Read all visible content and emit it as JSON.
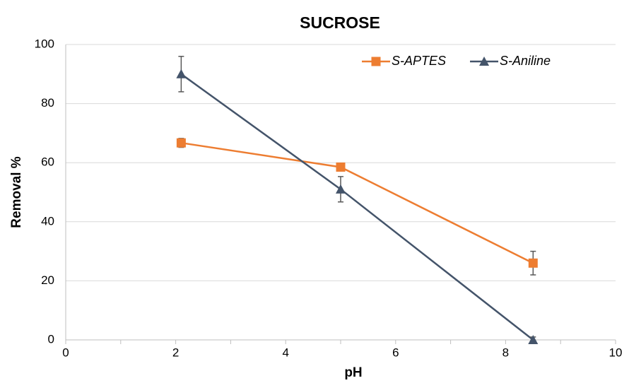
{
  "chart_data": {
    "type": "line",
    "title": "SUCROSE",
    "x_label": "pH",
    "y_label": "Removal %",
    "series": [
      {
        "name": "S-APTES",
        "color": "#ed7d31",
        "marker": "square",
        "x": [
          2.1,
          5,
          8.5
        ],
        "values": [
          66.7,
          58.5,
          26
        ],
        "errors": [
          1.5,
          1,
          4
        ]
      },
      {
        "name": "S-Aniline",
        "color": "#44546a",
        "marker": "triangle",
        "x": [
          2.1,
          5,
          8.5
        ],
        "values": [
          90,
          51,
          0
        ],
        "errors": [
          6,
          4.3,
          1
        ]
      }
    ],
    "error_color": "#595959",
    "xlim": [
      0,
      10
    ],
    "xticks": [
      0,
      2,
      4,
      6,
      8,
      10
    ],
    "xminor_ticks": [
      1,
      3,
      5,
      7,
      9
    ],
    "ylim": [
      0,
      100
    ],
    "yticks": [
      0,
      20,
      40,
      60,
      80,
      100
    ],
    "grid": true,
    "legend": "top-right"
  }
}
